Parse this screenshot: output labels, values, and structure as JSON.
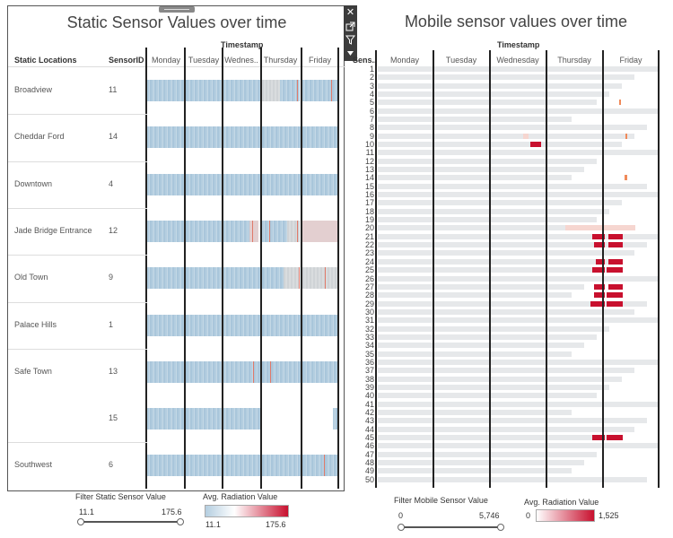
{
  "static_panel": {
    "title": "Static Sensor Values over time",
    "timestamp_label": "Timestamp",
    "col_locations": "Static Locations",
    "col_sensorid": "SensorID",
    "days": [
      "Monday",
      "Tuesday",
      "Wednes..",
      "Thursday",
      "Friday"
    ],
    "rows": [
      {
        "location": "Broadview",
        "sensor_id": "11"
      },
      {
        "location": "Cheddar Ford",
        "sensor_id": "14"
      },
      {
        "location": "Downtown",
        "sensor_id": "4"
      },
      {
        "location": "Jade Bridge Entrance",
        "sensor_id": "12"
      },
      {
        "location": "Old Town",
        "sensor_id": "9"
      },
      {
        "location": "Palace Hills",
        "sensor_id": "1"
      },
      {
        "location": "Safe Town",
        "sensor_id": "13"
      },
      {
        "location": "",
        "sensor_id": "15"
      },
      {
        "location": "Southwest",
        "sensor_id": "6"
      }
    ]
  },
  "mobile_panel": {
    "title": "Mobile sensor values over time",
    "timestamp_label": "Timestamp",
    "col_sensor": "Sens..",
    "days": [
      "Monday",
      "Tuesday",
      "Wednesday",
      "Thursday",
      "Friday"
    ],
    "sensor_ids": [
      "1",
      "2",
      "3",
      "4",
      "5",
      "6",
      "7",
      "8",
      "9",
      "10",
      "11",
      "12",
      "13",
      "14",
      "15",
      "16",
      "17",
      "18",
      "19",
      "20",
      "21",
      "22",
      "23",
      "24",
      "25",
      "26",
      "27",
      "28",
      "29",
      "30",
      "31",
      "32",
      "33",
      "34",
      "35",
      "36",
      "37",
      "38",
      "39",
      "40",
      "41",
      "42",
      "43",
      "44",
      "45",
      "46",
      "47",
      "48",
      "49",
      "50"
    ]
  },
  "toolbar": {
    "close_icon": "close-icon",
    "popout_icon": "popout-icon",
    "filter_icon": "filter-icon",
    "menu_icon": "dropdown-icon"
  },
  "static_filter": {
    "title": "Filter Static Sensor Value",
    "min": "11.1",
    "max": "175.6"
  },
  "static_legend": {
    "title": "Avg. Radiation Value",
    "min": "11.1",
    "max": "175.6",
    "color_low": "#b4cee0",
    "color_high": "#c8102e"
  },
  "mobile_filter": {
    "title": "Filter Mobile Sensor Value",
    "min": "0",
    "max": "5,746"
  },
  "mobile_legend": {
    "title": "Avg. Radiation Value",
    "min": "0",
    "max": "1,525",
    "color_low": "#ffffff",
    "color_high": "#c8102e"
  }
}
